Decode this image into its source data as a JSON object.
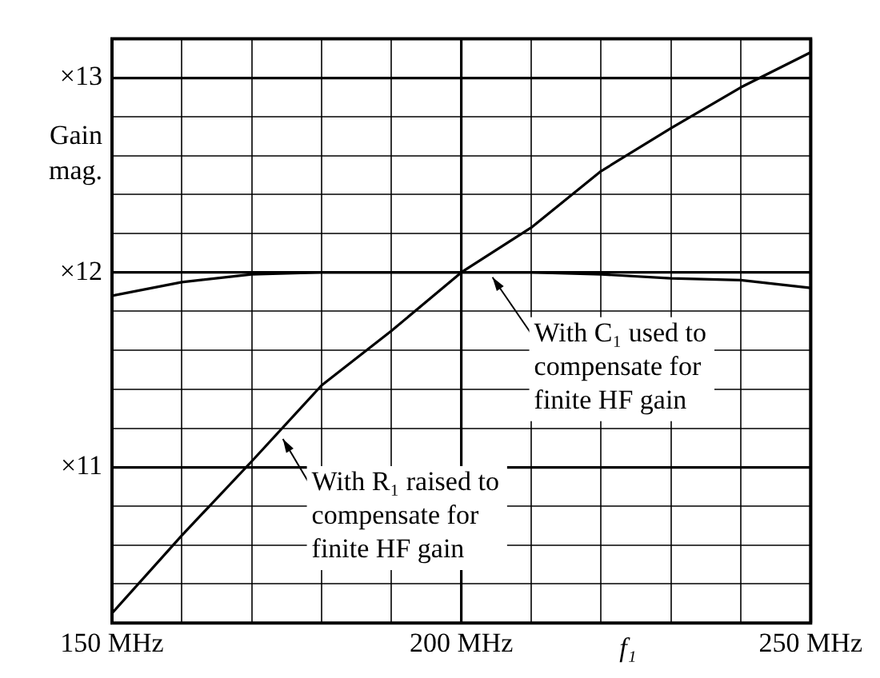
{
  "chart_data": {
    "type": "line",
    "xlabel": "f₁",
    "ylabel": "Gain mag.",
    "x": [
      150,
      160,
      170,
      180,
      190,
      200,
      210,
      220,
      230,
      240,
      250
    ],
    "series": [
      {
        "color": "#000000",
        "values": [
          10.25,
          10.65,
          11.03,
          11.42,
          11.7,
          12.0,
          12.23,
          12.52,
          12.74,
          12.95,
          13.13
        ]
      },
      {
        "color": "#000000",
        "values": [
          11.88,
          11.95,
          11.99,
          12.0,
          12.0,
          12.0,
          12.0,
          11.99,
          11.97,
          11.96,
          11.92
        ]
      }
    ],
    "xlim": [
      150,
      250
    ],
    "xticks": [
      {
        "value": 150,
        "label": "150 MHz"
      },
      {
        "value": 160,
        "label": null
      },
      {
        "value": 170,
        "label": null
      },
      {
        "value": 180,
        "label": null
      },
      {
        "value": 190,
        "label": null
      },
      {
        "value": 200,
        "label": "200 MHz"
      },
      {
        "value": 210,
        "label": null
      },
      {
        "value": 220,
        "label": null
      },
      {
        "value": 230,
        "label": null
      },
      {
        "value": 240,
        "label": null
      },
      {
        "value": 250,
        "label": "250 MHz"
      }
    ],
    "ylim": [
      10.2,
      13.2
    ],
    "yticks": [
      {
        "value": 10.2,
        "label": null
      },
      {
        "value": 10.4,
        "label": null
      },
      {
        "value": 10.6,
        "label": null
      },
      {
        "value": 10.8,
        "label": null
      },
      {
        "value": 11,
        "label": "×11"
      },
      {
        "value": 11.2,
        "label": null
      },
      {
        "value": 11.4,
        "label": null
      },
      {
        "value": 11.6,
        "label": null
      },
      {
        "value": 11.8,
        "label": null
      },
      {
        "value": 12,
        "label": "×12"
      },
      {
        "value": 12.2,
        "label": null
      },
      {
        "value": 12.4,
        "label": null
      },
      {
        "value": 12.6,
        "label": null
      },
      {
        "value": 12.8,
        "label": null
      },
      {
        "value": 13,
        "label": "×13"
      },
      {
        "value": 13.2,
        "label": null
      }
    ],
    "grid": true,
    "legend": false,
    "marker": "none",
    "line_style": "solid",
    "annotations": [
      {
        "text": "With C₁ used to compensate for finite HF gain",
        "x": 204,
        "y": 12.0
      },
      {
        "text": "With R₁ raised to compensate for finite HF gain",
        "x": 174,
        "y": 11.17
      }
    ]
  }
}
